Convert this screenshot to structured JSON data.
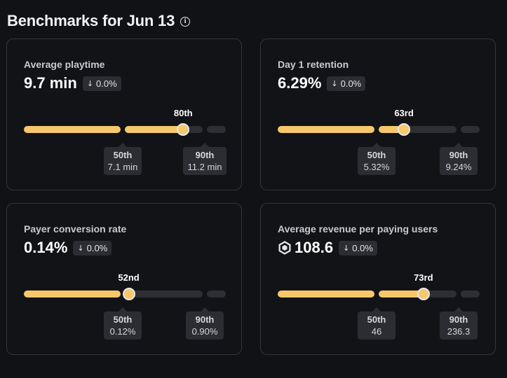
{
  "header": {
    "title": "Benchmarks for Jun 13",
    "info_icon": "info-icon"
  },
  "cards": [
    {
      "label": "Average playtime",
      "value": "9.7 min",
      "delta": "0.0%",
      "delta_icon": "arrow-down-icon",
      "percentile_label": "80th",
      "percentile": 80,
      "p50": {
        "rank": "50th",
        "value": "7.1 min"
      },
      "p90": {
        "rank": "90th",
        "value": "11.2 min"
      }
    },
    {
      "label": "Day 1 retention",
      "value": "6.29%",
      "delta": "0.0%",
      "delta_icon": "arrow-down-icon",
      "percentile_label": "63rd",
      "percentile": 63,
      "p50": {
        "rank": "50th",
        "value": "5.32%"
      },
      "p90": {
        "rank": "90th",
        "value": "9.24%"
      }
    },
    {
      "label": "Payer conversion rate",
      "value": "0.14%",
      "delta": "0.0%",
      "delta_icon": "arrow-down-icon",
      "percentile_label": "52nd",
      "percentile": 52,
      "p50": {
        "rank": "50th",
        "value": "0.12%"
      },
      "p90": {
        "rank": "90th",
        "value": "0.90%"
      }
    },
    {
      "label": "Average revenue per paying users",
      "value": "108.6",
      "value_icon": "robux-icon",
      "delta": "0.0%",
      "delta_icon": "arrow-down-icon",
      "percentile_label": "73rd",
      "percentile": 73,
      "p50": {
        "rank": "50th",
        "value": "46"
      },
      "p90": {
        "rank": "90th",
        "value": "236.3"
      }
    }
  ],
  "colors": {
    "bar_fill": "#f6c86b",
    "bar_track": "#2e2f35",
    "card_border": "#34363d",
    "background": "#111216"
  }
}
